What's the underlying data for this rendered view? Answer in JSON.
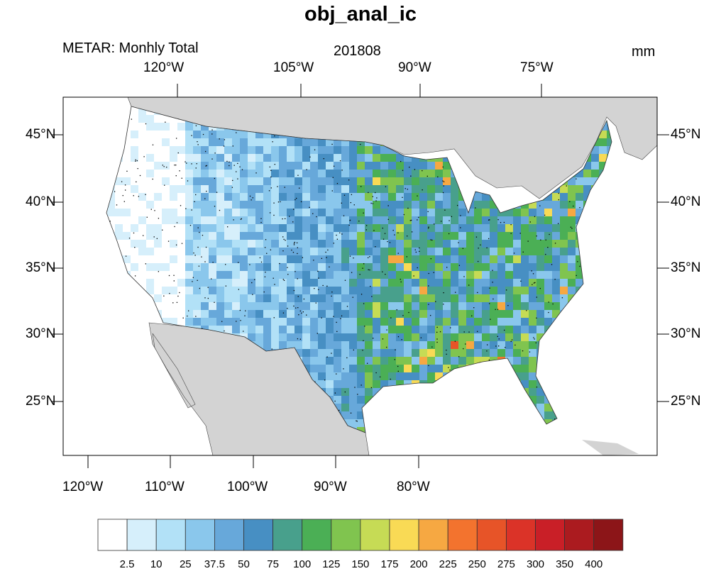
{
  "title": "obj_anal_ic",
  "left_string": "METAR: Monhly Total",
  "center_string": "201808",
  "right_string": "mm",
  "top_lon_labels": [
    "120°W",
    "105°W",
    "90°W",
    "75°W"
  ],
  "bottom_lon_labels": [
    "120°W",
    "110°W",
    "100°W",
    "90°W",
    "80°W"
  ],
  "lat_labels": [
    "45°N",
    "40°N",
    "35°N",
    "30°N",
    "25°N"
  ],
  "colorbar": {
    "labels": [
      "2.5",
      "10",
      "25",
      "37.5",
      "50",
      "75",
      "100",
      "125",
      "150",
      "175",
      "200",
      "225",
      "250",
      "275",
      "300",
      "350",
      "400"
    ],
    "colors": [
      "#ffffff",
      "#d6effb",
      "#b2e1f7",
      "#8ac7ec",
      "#67a8da",
      "#478fc3",
      "#48a08c",
      "#4baf55",
      "#80c44f",
      "#c6db55",
      "#f9da55",
      "#f6a842",
      "#f3732e",
      "#e75428",
      "#db3328",
      "#c91f27",
      "#ab1b1f",
      "#8c1518"
    ]
  },
  "land_color": "#d3d3d3"
}
